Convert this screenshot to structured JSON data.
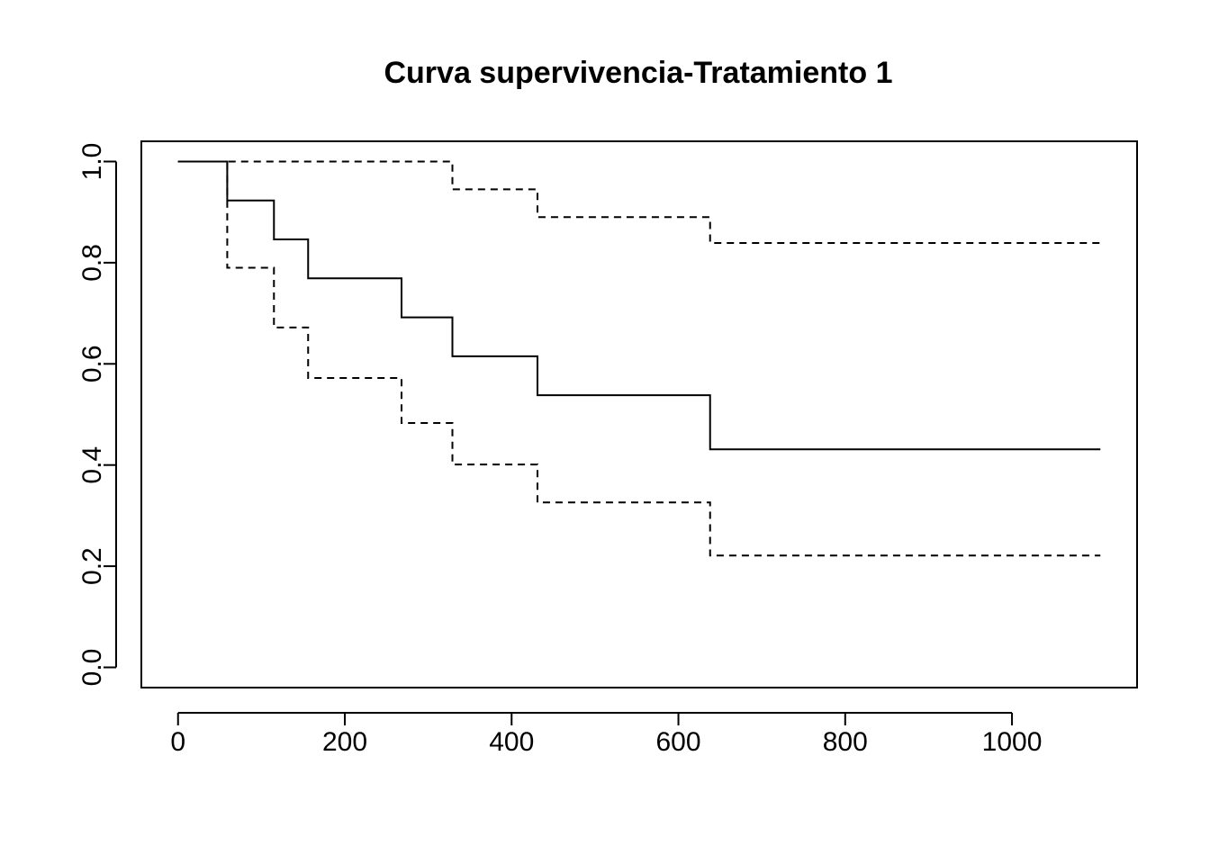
{
  "chart_data": {
    "type": "line",
    "title": "Curva supervivencia-Tratamiento 1",
    "xlabel": "",
    "ylabel": "",
    "xlim": [
      -44,
      1150
    ],
    "ylim": [
      -0.04,
      1.04
    ],
    "x_ticks": [
      0,
      200,
      400,
      600,
      800,
      1000
    ],
    "x_tick_labels": [
      "0",
      "200",
      "400",
      "600",
      "800",
      "1000"
    ],
    "y_ticks": [
      0.0,
      0.2,
      0.4,
      0.6,
      0.8,
      1.0
    ],
    "y_tick_labels": [
      "0.0",
      "0.2",
      "0.4",
      "0.6",
      "0.8",
      "1.0"
    ],
    "grid": false,
    "legend": "none",
    "series": [
      {
        "style": "solid",
        "x": [
          0,
          59,
          115,
          156,
          268,
          329,
          431,
          638,
          1106
        ],
        "y": [
          1.0,
          0.923,
          0.846,
          0.769,
          0.692,
          0.615,
          0.538,
          0.431,
          0.431
        ]
      },
      {
        "style": "dashed",
        "x": [
          0,
          59,
          115,
          156,
          268,
          329,
          431,
          638,
          1106
        ],
        "y": [
          1.0,
          1.0,
          1.0,
          1.0,
          1.0,
          0.945,
          0.89,
          0.839,
          0.839
        ]
      },
      {
        "style": "dashed",
        "x": [
          0,
          59,
          115,
          156,
          268,
          329,
          431,
          638,
          1106
        ],
        "y": [
          1.0,
          0.79,
          0.672,
          0.572,
          0.483,
          0.401,
          0.326,
          0.221,
          0.221
        ]
      }
    ],
    "colors": {
      "line": "#000000",
      "background": "#ffffff"
    }
  }
}
